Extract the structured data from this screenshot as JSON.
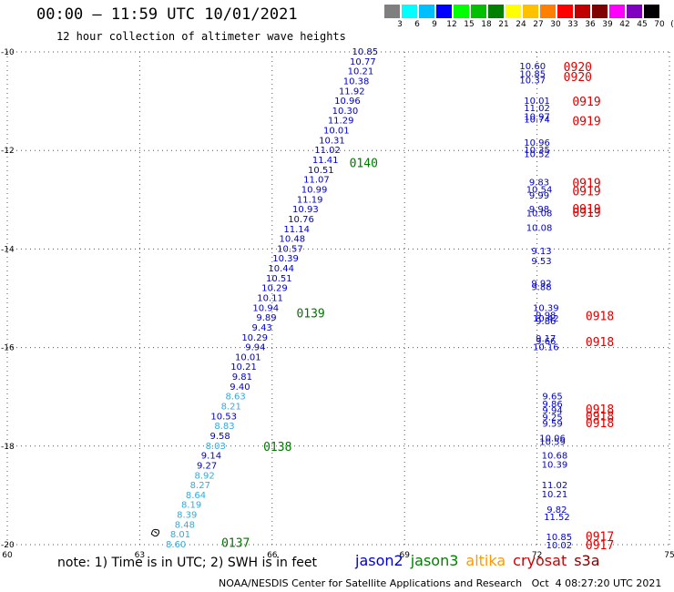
{
  "title": "00:00 — 11:59 UTC 10/01/2021",
  "subtitle": "12 hour collection of altimeter wave heights",
  "footer": "NOAA/NESDIS Center for Satellite Applications and Research   Oct  4 08:27:20 UTC 2021",
  "note": "note: 1) Time is in UTC; 2) SWH is in feet",
  "colorbar": {
    "labels": [
      "3",
      "6",
      "9",
      "12",
      "15",
      "18",
      "21",
      "24",
      "27",
      "30",
      "33",
      "36",
      "39",
      "42",
      "45",
      "70",
      "(ft)"
    ],
    "colors": [
      "#7f7f7f",
      "#00ffff",
      "#00bfff",
      "#0000ff",
      "#00ff00",
      "#00c000",
      "#008000",
      "#ffff00",
      "#ffc000",
      "#ff8000",
      "#ff0000",
      "#c00000",
      "#800000",
      "#ff00ff",
      "#8000c0",
      "#000000"
    ]
  },
  "missions": [
    {
      "name": "jason2",
      "color": "#0000cc"
    },
    {
      "name": "jason3",
      "color": "#008000"
    },
    {
      "name": "altika",
      "color": "#ff9900"
    },
    {
      "name": "cryosat",
      "color": "#cc0000"
    },
    {
      "name": "s3a",
      "color": "#800000"
    }
  ],
  "chart_data": {
    "type": "scatter",
    "x_ticks": [
      "60",
      "63",
      "66",
      "69",
      "72",
      "75"
    ],
    "y_ticks": [
      "-10",
      "-12",
      "-14",
      "-16",
      "-18",
      "-20"
    ],
    "xlim": [
      60,
      75
    ],
    "ylim": [
      -20,
      -10
    ],
    "grid": true,
    "track1": {
      "color_default": "#0000cc",
      "color_light": "#33aadd",
      "light_start": 37,
      "points": [
        [
          68.4,
          -10.0,
          "10.85"
        ],
        [
          68.35,
          -10.2,
          "10.77"
        ],
        [
          68.3,
          -10.4,
          "10.21"
        ],
        [
          68.2,
          -10.6,
          "10.38"
        ],
        [
          68.1,
          -10.8,
          "11.92"
        ],
        [
          68.0,
          -11.0,
          "10.96"
        ],
        [
          67.95,
          -11.2,
          "10.30"
        ],
        [
          67.85,
          -11.4,
          "11.29"
        ],
        [
          67.75,
          -11.6,
          "10.01"
        ],
        [
          67.65,
          -11.8,
          "10.31"
        ],
        [
          67.55,
          -12.0,
          "11.02"
        ],
        [
          67.5,
          -12.2,
          "11.41"
        ],
        [
          67.4,
          -12.4,
          "10.51"
        ],
        [
          67.3,
          -12.6,
          "11.07"
        ],
        [
          67.25,
          -12.8,
          "10.99"
        ],
        [
          67.15,
          -13.0,
          "11.19"
        ],
        [
          67.05,
          -13.2,
          "10.93"
        ],
        [
          66.95,
          -13.4,
          "10.76"
        ],
        [
          66.85,
          -13.6,
          "11.14"
        ],
        [
          66.75,
          -13.8,
          "10.48"
        ],
        [
          66.7,
          -14.0,
          "10.57"
        ],
        [
          66.6,
          -14.2,
          "10.39"
        ],
        [
          66.5,
          -14.4,
          "10.44"
        ],
        [
          66.45,
          -14.6,
          "10.51"
        ],
        [
          66.35,
          -14.8,
          "10.29"
        ],
        [
          66.25,
          -15.0,
          "10.11"
        ],
        [
          66.15,
          -15.2,
          "10.94"
        ],
        [
          66.1,
          -15.4,
          "9.89"
        ],
        [
          66.0,
          -15.6,
          "9.43"
        ],
        [
          65.9,
          -15.8,
          "10.29"
        ],
        [
          65.85,
          -16.0,
          "9.94"
        ],
        [
          65.75,
          -16.2,
          "10.01"
        ],
        [
          65.65,
          -16.4,
          "10.21"
        ],
        [
          65.55,
          -16.6,
          "9.81"
        ],
        [
          65.5,
          -16.8,
          "9.40"
        ],
        [
          65.4,
          -17.0,
          "8.63"
        ],
        [
          65.3,
          -17.2,
          "8.21"
        ],
        [
          65.2,
          -17.4,
          "10.53"
        ],
        [
          65.15,
          -17.6,
          "8.83"
        ],
        [
          65.05,
          -17.8,
          "9.58"
        ],
        [
          64.95,
          -18.0,
          "8.03"
        ],
        [
          64.85,
          -18.2,
          "9.14"
        ],
        [
          64.75,
          -18.4,
          "9.27"
        ],
        [
          64.7,
          -18.6,
          "8.92"
        ],
        [
          64.6,
          -18.8,
          "8.27"
        ],
        [
          64.5,
          -19.0,
          "8.64"
        ],
        [
          64.4,
          -19.2,
          "8.19"
        ],
        [
          64.3,
          -19.4,
          "8.39"
        ],
        [
          64.25,
          -19.6,
          "8.48"
        ],
        [
          64.15,
          -19.8,
          "8.01"
        ],
        [
          64.05,
          -20.0,
          "8.60"
        ]
      ],
      "light_labels": [
        "8.63",
        "8.21",
        "8.83",
        "8.03",
        "8.92",
        "8.27",
        "8.64",
        "8.19",
        "8.39",
        "8.48",
        "8.01",
        "8.60"
      ]
    },
    "track1_times": [
      {
        "label": "0140",
        "lon": 67.75,
        "lat": -12.25
      },
      {
        "label": "0139",
        "lon": 66.55,
        "lat": -15.3
      },
      {
        "label": "0138",
        "lon": 65.8,
        "lat": -18.0
      },
      {
        "label": "0137",
        "lon": 64.85,
        "lat": -19.95
      }
    ],
    "track2": {
      "color": "#0000cc",
      "points": [
        [
          71.9,
          -10.3,
          "10.60"
        ],
        [
          71.9,
          -10.45,
          "10.85"
        ],
        [
          71.9,
          -10.58,
          "10.37"
        ],
        [
          72.0,
          -11.0,
          "10.01"
        ],
        [
          72.0,
          -11.15,
          "11.02"
        ],
        [
          72.0,
          -11.32,
          "10.97"
        ],
        [
          72.0,
          -11.38,
          "10.74"
        ],
        [
          72.0,
          -11.85,
          "10.96"
        ],
        [
          72.0,
          -12.0,
          "10.35"
        ],
        [
          72.0,
          -12.08,
          "10.52"
        ],
        [
          72.05,
          -12.65,
          "9.83"
        ],
        [
          72.05,
          -12.8,
          "10.54"
        ],
        [
          72.05,
          -12.92,
          "9.99"
        ],
        [
          72.05,
          -13.2,
          "9.98"
        ],
        [
          72.05,
          -13.28,
          "10.08"
        ],
        [
          72.05,
          -13.58,
          "10.08"
        ],
        [
          72.1,
          -14.05,
          "9.13"
        ],
        [
          72.1,
          -14.25,
          "9.53"
        ],
        [
          72.1,
          -14.7,
          "9.92"
        ],
        [
          72.1,
          -14.78,
          "9.88"
        ],
        [
          72.2,
          -15.2,
          "10.39"
        ],
        [
          72.2,
          -15.35,
          "9.98"
        ],
        [
          72.2,
          -15.42,
          "10.42"
        ],
        [
          72.2,
          -15.47,
          "9.86"
        ],
        [
          72.2,
          -15.82,
          "9.17"
        ],
        [
          72.2,
          -15.88,
          "9.66"
        ],
        [
          72.2,
          -16.0,
          "10.16"
        ],
        [
          72.35,
          -17.0,
          "9.65"
        ],
        [
          72.35,
          -17.15,
          "9.86"
        ],
        [
          72.35,
          -17.28,
          "9.94"
        ],
        [
          72.35,
          -17.42,
          "9.25"
        ],
        [
          72.35,
          -17.55,
          "9.59"
        ],
        [
          72.35,
          -17.85,
          "10.06"
        ],
        [
          72.35,
          -17.92,
          "10.59"
        ],
        [
          72.4,
          -18.2,
          "10.68"
        ],
        [
          72.4,
          -18.38,
          "10.39"
        ],
        [
          72.4,
          -18.8,
          "11.02"
        ],
        [
          72.4,
          -18.98,
          "10.21"
        ],
        [
          72.45,
          -19.3,
          "9.82"
        ],
        [
          72.45,
          -19.45,
          "11.52"
        ],
        [
          72.5,
          -19.85,
          "10.85"
        ],
        [
          72.5,
          -20.02,
          "10.02"
        ]
      ]
    },
    "track2_times": [
      {
        "label": "0920",
        "lon": 72.6,
        "lat": -10.3
      },
      {
        "label": "0920",
        "lon": 72.6,
        "lat": -10.5
      },
      {
        "label": "0919",
        "lon": 72.8,
        "lat": -11.0
      },
      {
        "label": "0919",
        "lon": 72.8,
        "lat": -11.4
      },
      {
        "label": "0919",
        "lon": 72.8,
        "lat": -12.65
      },
      {
        "label": "0919",
        "lon": 72.8,
        "lat": -12.82
      },
      {
        "label": "0919",
        "lon": 72.8,
        "lat": -13.18
      },
      {
        "label": "0919",
        "lon": 72.8,
        "lat": -13.25
      },
      {
        "label": "0918",
        "lon": 73.1,
        "lat": -15.35
      },
      {
        "label": "0918",
        "lon": 73.1,
        "lat": -15.88
      },
      {
        "label": "0918",
        "lon": 73.1,
        "lat": -17.25
      },
      {
        "label": "0918",
        "lon": 73.1,
        "lat": -17.38
      },
      {
        "label": "0918",
        "lon": 73.1,
        "lat": -17.52
      },
      {
        "label": "0917",
        "lon": 73.1,
        "lat": -19.82
      },
      {
        "label": "0917",
        "lon": 73.1,
        "lat": -20.0
      }
    ],
    "island": {
      "lon": 63.35,
      "lat": -19.75
    }
  }
}
